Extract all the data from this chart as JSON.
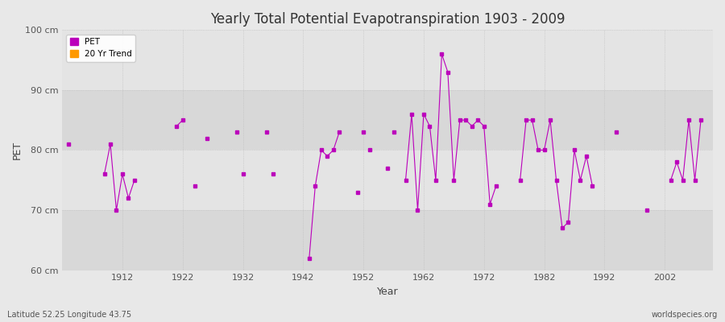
{
  "title": "Yearly Total Potential Evapotranspiration 1903 - 2009",
  "xlabel": "Year",
  "ylabel": "PET",
  "lat_lon_label": "Latitude 52.25 Longitude 43.75",
  "watermark": "worldspecies.org",
  "ylim": [
    60,
    100
  ],
  "yticks": [
    60,
    70,
    80,
    90,
    100
  ],
  "ytick_labels": [
    "60 cm",
    "70 cm",
    "80 cm",
    "90 cm",
    "100 cm"
  ],
  "bg_color": "#e8e8e8",
  "plot_bg_color": "#e8e8e8",
  "band_colors": [
    "#dcdcdc",
    "#e8e8e8"
  ],
  "grid_color": "#bbbbbb",
  "line_color": "#bb00bb",
  "pet_color": "#bb00bb",
  "trend_color": "#ff9900",
  "xlim": [
    1902,
    2010
  ],
  "xticks": [
    1912,
    1922,
    1932,
    1942,
    1952,
    1962,
    1972,
    1982,
    1992,
    2002
  ],
  "pet_years": [
    1903,
    1909,
    1910,
    1911,
    1912,
    1913,
    1914,
    1921,
    1922,
    1924,
    1926,
    1931,
    1932,
    1936,
    1937,
    1943,
    1944,
    1945,
    1946,
    1947,
    1948,
    1951,
    1952,
    1953,
    1956,
    1957,
    1959,
    1960,
    1961,
    1962,
    1963,
    1964,
    1965,
    1966,
    1967,
    1968,
    1969,
    1970,
    1971,
    1972,
    1973,
    1974,
    1978,
    1979,
    1980,
    1981,
    1982,
    1983,
    1984,
    1985,
    1986,
    1987,
    1988,
    1989,
    1990,
    1994,
    1999,
    2003,
    2004,
    2005,
    2006,
    2007,
    2008
  ],
  "pet_values": [
    81,
    76,
    81,
    70,
    76,
    72,
    75,
    84,
    85,
    74,
    82,
    83,
    76,
    83,
    76,
    62,
    74,
    80,
    79,
    80,
    83,
    73,
    83,
    80,
    77,
    83,
    75,
    86,
    70,
    86,
    84,
    75,
    96,
    93,
    75,
    85,
    85,
    84,
    85,
    84,
    71,
    74,
    75,
    85,
    85,
    80,
    80,
    85,
    75,
    67,
    68,
    80,
    75,
    79,
    74,
    83,
    70,
    75,
    78,
    75,
    85,
    75,
    85
  ],
  "connected_segments": [
    [
      1909,
      1910,
      1911,
      1912,
      1913,
      1914
    ],
    [
      1921,
      1922
    ],
    [
      1943,
      1944,
      1945,
      1946,
      1947,
      1948
    ],
    [
      1959,
      1960,
      1961,
      1962,
      1963,
      1964,
      1965,
      1966,
      1967,
      1968,
      1969,
      1970,
      1971,
      1972,
      1973,
      1974
    ],
    [
      1978,
      1979,
      1980,
      1981,
      1982,
      1983,
      1984,
      1985,
      1986,
      1987,
      1988,
      1989,
      1990
    ],
    [
      2003,
      2004,
      2005,
      2006,
      2007,
      2008
    ]
  ]
}
